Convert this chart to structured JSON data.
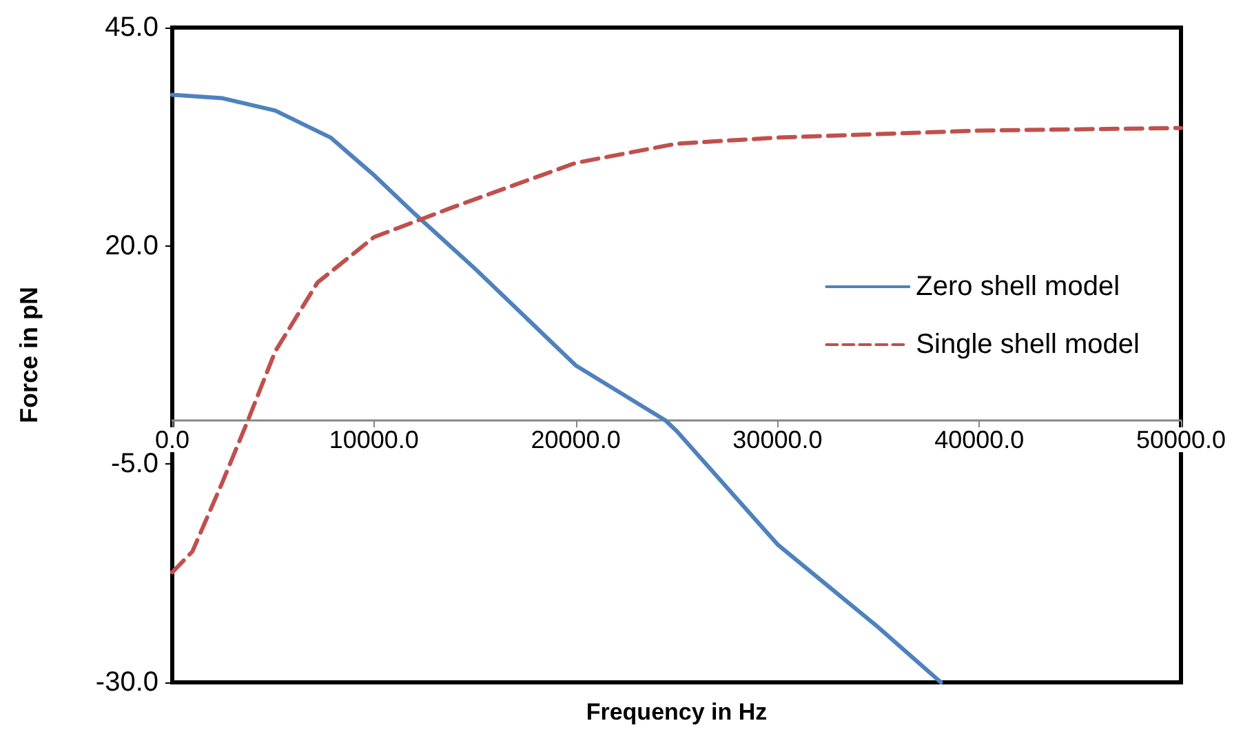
{
  "chart_data": {
    "type": "line",
    "xlabel": "Frequency in Hz",
    "ylabel": "Force in pN",
    "xlim": [
      0,
      50000
    ],
    "ylim": [
      -30,
      45
    ],
    "xticks": [
      {
        "value": 0,
        "label": "0.0"
      },
      {
        "value": 10000,
        "label": "10000.0"
      },
      {
        "value": 20000,
        "label": "20000.0"
      },
      {
        "value": 30000,
        "label": "30000.0"
      },
      {
        "value": 40000,
        "label": "40000.0"
      },
      {
        "value": 50000,
        "label": "50000.0"
      }
    ],
    "yticks": [
      {
        "value": -30,
        "label": "-30.0"
      },
      {
        "value": -5,
        "label": "-5.0"
      },
      {
        "value": 20,
        "label": "20.0"
      },
      {
        "value": 45,
        "label": "45.0"
      }
    ],
    "grid": false,
    "legend": "right",
    "marker": "none",
    "series": [
      {
        "name": "Zero shell model",
        "color": "#4f81bd",
        "line_style": "solid",
        "x": [
          0,
          2500,
          5100,
          7850,
          10000,
          12000,
          15000,
          20000,
          24450,
          25000,
          30000,
          35000,
          38100
        ],
        "values": [
          37.3,
          36.9,
          35.5,
          32.4,
          28.1,
          23.7,
          17.4,
          6.3,
          0,
          -1.2,
          -14.2,
          -23.7,
          -30
        ]
      },
      {
        "name": "Single shell model",
        "color": "#c0504d",
        "line_style": "dashed",
        "x": [
          0,
          1000,
          2500,
          3750,
          5100,
          7200,
          10000,
          14000,
          20000,
          25000,
          30000,
          40000,
          50000
        ],
        "values": [
          -17.4,
          -15,
          -7,
          0,
          7.9,
          15.8,
          21,
          24.5,
          29.5,
          31.7,
          32.4,
          33.2,
          33.5
        ]
      }
    ]
  }
}
